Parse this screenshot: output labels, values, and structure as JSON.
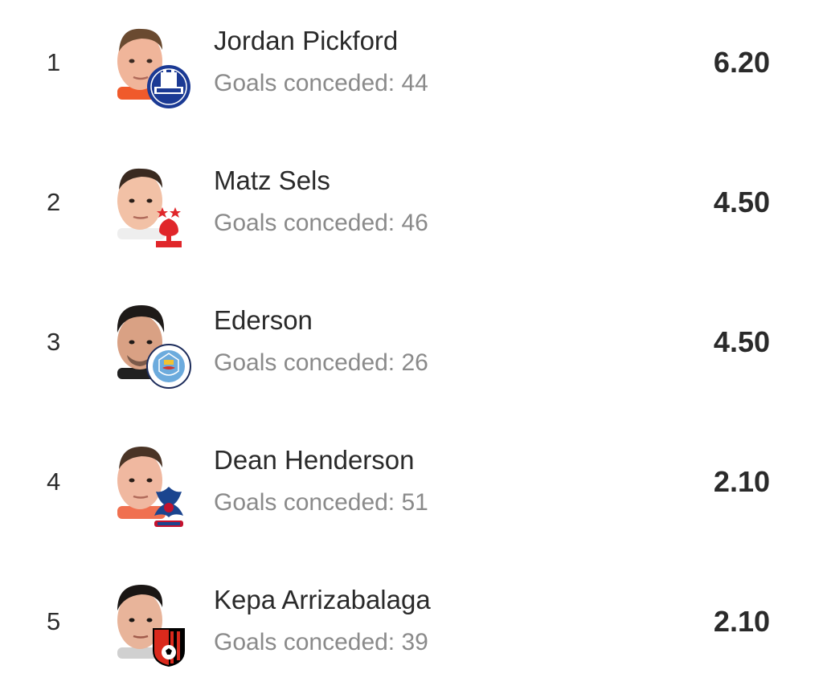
{
  "players": [
    {
      "rank": "1",
      "name": "Jordan Pickford",
      "meta": "Goals conceded: 44",
      "score": "6.20",
      "club_badge": "everton-badge-icon",
      "badge_colors": {
        "primary": "#1b3a94",
        "secondary": "#ffffff"
      },
      "skin": "#f0b59a",
      "hair": "#6a4a30",
      "shirt": "#f05a2b"
    },
    {
      "rank": "2",
      "name": "Matz Sels",
      "meta": "Goals conceded: 46",
      "score": "4.50",
      "club_badge": "nottingham-forest-badge-icon",
      "badge_colors": {
        "primary": "#e0262a",
        "secondary": "#ffffff"
      },
      "skin": "#f2c1a6",
      "hair": "#3a2a20",
      "shirt": "#ffffff"
    },
    {
      "rank": "3",
      "name": "Ederson",
      "meta": "Goals conceded: 26",
      "score": "4.50",
      "club_badge": "manchester-city-badge-icon",
      "badge_colors": {
        "primary": "#6cabdd",
        "secondary": "#1c2c5b"
      },
      "skin": "#d9a184",
      "hair": "#1e1a18",
      "shirt": "#202020"
    },
    {
      "rank": "4",
      "name": "Dean Henderson",
      "meta": "Goals conceded: 51",
      "score": "2.10",
      "club_badge": "crystal-palace-badge-icon",
      "badge_colors": {
        "primary": "#1b458f",
        "secondary": "#c4122e"
      },
      "skin": "#f0b8a0",
      "hair": "#4a3426",
      "shirt": "#f07050"
    },
    {
      "rank": "5",
      "name": "Kepa Arrizabalaga",
      "meta": "Goals conceded: 39",
      "score": "2.10",
      "club_badge": "bournemouth-badge-icon",
      "badge_colors": {
        "primary": "#da291c",
        "secondary": "#000000"
      },
      "skin": "#e8b49a",
      "hair": "#1a1614",
      "shirt": "#d0d0d0"
    }
  ]
}
